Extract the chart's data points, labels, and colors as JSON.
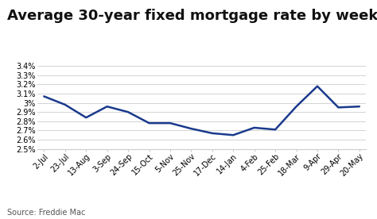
{
  "title": "Average 30-year fixed mortgage rate by week",
  "source": "Source: Freddie Mac",
  "x_labels": [
    "2-Jul",
    "23-Jul",
    "13-Aug",
    "3-Sep",
    "24-Sep",
    "15-Oct",
    "5-Nov",
    "25-Nov",
    "17-Dec",
    "14-Jan",
    "4-Feb",
    "25-Feb",
    "18-Mar",
    "9-Apr",
    "29-Apr",
    "20-May"
  ],
  "y_values": [
    3.07,
    2.98,
    2.84,
    2.96,
    2.9,
    2.78,
    2.78,
    2.72,
    2.67,
    2.65,
    2.73,
    2.71,
    2.96,
    3.18,
    2.95,
    2.96
  ],
  "line_color": "#1a3a8c",
  "line_width": 1.8,
  "ylim": [
    2.5,
    3.45
  ],
  "yticks": [
    2.5,
    2.6,
    2.7,
    2.8,
    2.9,
    3.0,
    3.1,
    3.2,
    3.3,
    3.4
  ],
  "ytick_labels": [
    "2.5%",
    "2.6%",
    "2.7%",
    "2.8%",
    "2.9%",
    "3%",
    "3.1%",
    "3.2%",
    "3.3%",
    "3.4%"
  ],
  "title_fontsize": 13,
  "tick_fontsize": 7,
  "source_fontsize": 7,
  "grid_color": "#cccccc",
  "background_color": "#ffffff"
}
